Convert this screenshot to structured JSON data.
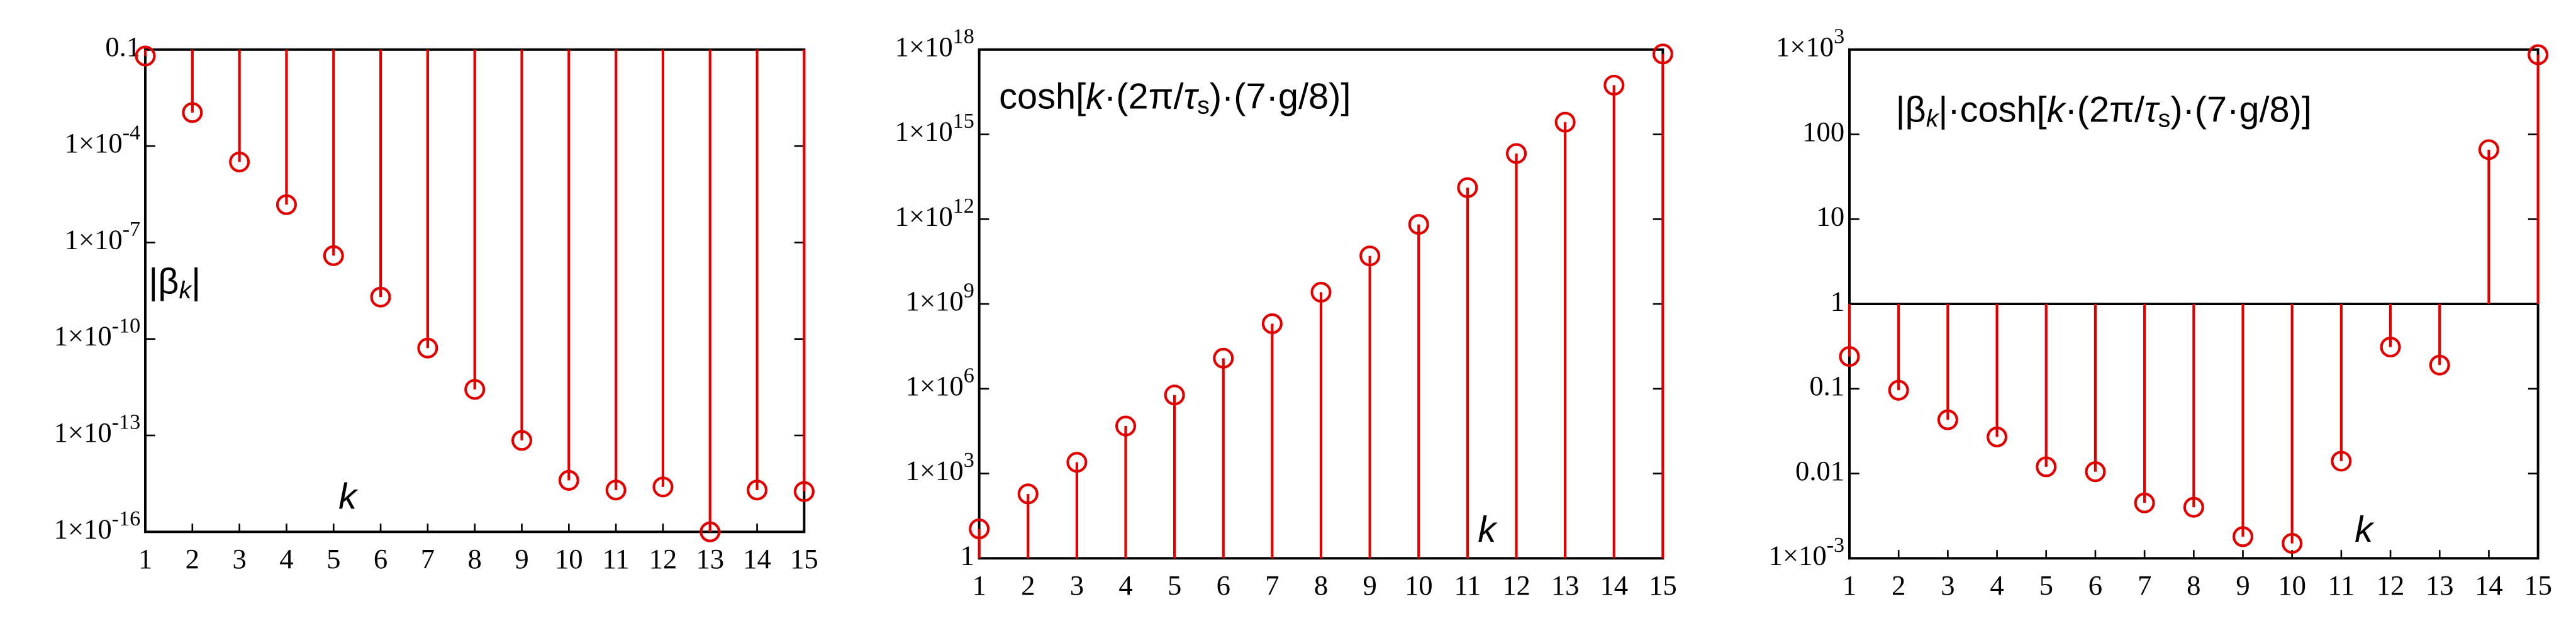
{
  "chart_data": [
    {
      "type": "stem",
      "log_y": true,
      "color": "#e00000",
      "x": [
        1,
        2,
        3,
        4,
        5,
        6,
        7,
        8,
        9,
        10,
        11,
        12,
        13,
        14,
        15
      ],
      "values": [
        0.063,
        0.0011,
        3.2e-05,
        1.5e-06,
        3.9e-08,
        2e-09,
        5.2e-11,
        2.7e-12,
        7e-14,
        4e-15,
        2e-15,
        2.5e-15,
        1e-16,
        2e-15,
        1.8e-15
      ],
      "xlim": [
        1,
        15
      ],
      "xticks": [
        1,
        2,
        3,
        4,
        5,
        6,
        7,
        8,
        9,
        10,
        11,
        12,
        13,
        14,
        15
      ],
      "ylim": [
        1e-16,
        0.1
      ],
      "yticks": [
        {
          "value": 1e-16,
          "label": "1×10",
          "exponent": "-16"
        },
        {
          "value": 1e-13,
          "label": "1×10",
          "exponent": "-13"
        },
        {
          "value": 1e-10,
          "label": "1×10",
          "exponent": "-10"
        },
        {
          "value": 1e-07,
          "label": "1×10",
          "exponent": "-7"
        },
        {
          "value": 0.0001,
          "label": "1×10",
          "exponent": "-4"
        },
        0.1
      ],
      "annotations": [
        {
          "parts": [
            {
              "text": "|β"
            },
            {
              "text": "k",
              "sub": true,
              "italic": true
            },
            {
              "text": "|"
            }
          ]
        },
        {
          "parts": [
            {
              "text": "k",
              "italic": true
            }
          ]
        }
      ]
    },
    {
      "type": "stem",
      "log_y": true,
      "color": "#e00000",
      "x": [
        1,
        2,
        3,
        4,
        5,
        6,
        7,
        8,
        9,
        10,
        11,
        12,
        13,
        14,
        15
      ],
      "values": [
        11,
        190,
        2500,
        48000,
        600000,
        12000000,
        200000000,
        2600000000,
        50000000000,
        650000000000,
        13000000000000,
        210000000000000,
        2700000000000000,
        55000000000000000,
        700000000000000000
      ],
      "xlim": [
        1,
        15
      ],
      "xticks": [
        1,
        2,
        3,
        4,
        5,
        6,
        7,
        8,
        9,
        10,
        11,
        12,
        13,
        14,
        15
      ],
      "ylim": [
        1,
        1e+18
      ],
      "yticks": [
        1,
        {
          "value": 1000.0,
          "label": "1×10",
          "exponent": "3"
        },
        {
          "value": 1000000.0,
          "label": "1×10",
          "exponent": "6"
        },
        {
          "value": 1000000000.0,
          "label": "1×10",
          "exponent": "9"
        },
        {
          "value": 1000000000000.0,
          "label": "1×10",
          "exponent": "12"
        },
        {
          "value": 1000000000000000.0,
          "label": "1×10",
          "exponent": "15"
        },
        {
          "value": 1e+18,
          "label": "1×10",
          "exponent": "18"
        }
      ],
      "annotations": [
        {
          "parts": [
            {
              "text": "cosh["
            },
            {
              "text": "k",
              "italic": true
            },
            {
              "text": "·(2π/"
            },
            {
              "text": "τ",
              "italic": true
            },
            {
              "text": "s",
              "sub": true
            },
            {
              "text": ")·(7·g/8)]"
            }
          ]
        },
        {
          "parts": [
            {
              "text": "k",
              "italic": true
            }
          ]
        }
      ]
    },
    {
      "type": "stem",
      "log_y": true,
      "color": "#e00000",
      "x": [
        1,
        2,
        3,
        4,
        5,
        6,
        7,
        8,
        9,
        10,
        11,
        12,
        13,
        14,
        15
      ],
      "values": [
        0.24,
        0.096,
        0.043,
        0.027,
        0.012,
        0.0105,
        0.0045,
        0.004,
        0.0018,
        0.0015,
        0.014,
        0.31,
        0.19,
        66,
        870
      ],
      "xlim": [
        1,
        15
      ],
      "xticks": [
        1,
        2,
        3,
        4,
        5,
        6,
        7,
        8,
        9,
        10,
        11,
        12,
        13,
        14,
        15
      ],
      "ylim": [
        0.001,
        1000
      ],
      "yticks": [
        {
          "value": 0.001,
          "label": "1×10",
          "exponent": "-3"
        },
        0.01,
        0.1,
        1,
        10,
        100,
        {
          "value": 1000,
          "label": "1×10",
          "exponent": "3"
        }
      ],
      "annotations": [
        {
          "parts": [
            {
              "text": "|β"
            },
            {
              "text": "k",
              "sub": true,
              "italic": true
            },
            {
              "text": "|·cosh["
            },
            {
              "text": "k",
              "italic": true
            },
            {
              "text": "·(2π/"
            },
            {
              "text": "τ",
              "italic": true
            },
            {
              "text": "s",
              "sub": true
            },
            {
              "text": ")·(7·g/8)]"
            }
          ]
        },
        {
          "parts": [
            {
              "text": "k",
              "italic": true
            }
          ]
        }
      ]
    }
  ]
}
